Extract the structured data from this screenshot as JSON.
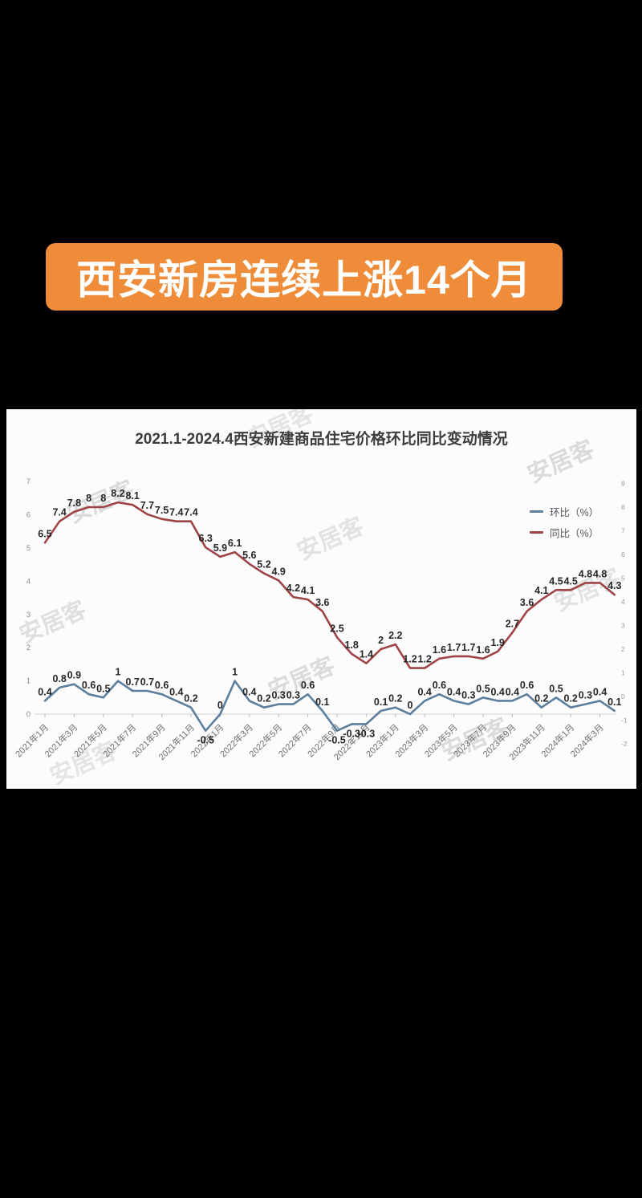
{
  "banner": {
    "text": "西安新房连续上涨14个月",
    "bg_color": "#ef8c3a",
    "text_color": "#ffffff"
  },
  "watermark": {
    "text": "安居客",
    "color": "#a8a8a8"
  },
  "chart_data": {
    "type": "line",
    "title": "2021.1-2024.4西安新建商品住宅价格环比同比变动情况",
    "grid": false,
    "legend_position": "inside-upper-right",
    "x_tick_interval": 2,
    "categories": [
      "2021年1月",
      "2021年2月",
      "2021年3月",
      "2021年4月",
      "2021年5月",
      "2021年6月",
      "2021年7月",
      "2021年8月",
      "2021年9月",
      "2021年10月",
      "2021年11月",
      "2021年12月",
      "2022年1月",
      "2022年2月",
      "2022年3月",
      "2022年4月",
      "2022年5月",
      "2022年6月",
      "2022年7月",
      "2022年8月",
      "2022年9月",
      "2022年10月",
      "2022年11月",
      "2022年12月",
      "2023年1月",
      "2023年2月",
      "2023年3月",
      "2023年4月",
      "2023年5月",
      "2023年6月",
      "2023年7月",
      "2023年8月",
      "2023年9月",
      "2023年10月",
      "2023年11月",
      "2023年12月",
      "2024年1月",
      "2024年2月",
      "2024年3月",
      "2024年4月"
    ],
    "series": [
      {
        "name": "环比（%）",
        "color": "#5d7f9d",
        "axis": "left",
        "values": [
          0.4,
          0.8,
          0.9,
          0.6,
          0.5,
          1,
          0.7,
          0.7,
          0.6,
          0.4,
          0.2,
          -0.5,
          0,
          1,
          0.4,
          0.2,
          0.3,
          0.3,
          0.6,
          0.1,
          -0.5,
          -0.3,
          -0.3,
          0.1,
          0.2,
          0,
          0.4,
          0.6,
          0.4,
          0.3,
          0.5,
          0.4,
          0.4,
          0.6,
          0.2,
          0.5,
          0.2,
          0.3,
          0.4,
          0.1
        ]
      },
      {
        "name": "同比（%）",
        "color": "#9e4446",
        "axis": "right",
        "values": [
          6.5,
          7.4,
          7.8,
          8,
          8,
          8.2,
          8.1,
          7.7,
          7.5,
          7.4,
          7.4,
          6.3,
          5.9,
          6.1,
          5.6,
          5.2,
          4.9,
          4.2,
          4.1,
          3.6,
          2.5,
          1.8,
          1.4,
          2,
          2.2,
          1.2,
          1.2,
          1.6,
          1.7,
          1.7,
          1.6,
          1.9,
          2.7,
          3.6,
          4.1,
          4.5,
          4.5,
          4.8,
          4.8,
          4.3
        ]
      }
    ],
    "left_axis": {
      "ticks": [
        0,
        1,
        2,
        3,
        4,
        5,
        6,
        7
      ],
      "min": -1,
      "max": 7
    },
    "right_axis": {
      "ticks": [
        9,
        8,
        7,
        6,
        5,
        4,
        3,
        2,
        1,
        0,
        -1,
        -2
      ],
      "min": -2,
      "max": 9
    }
  }
}
